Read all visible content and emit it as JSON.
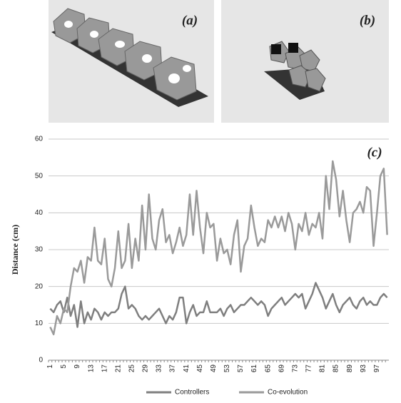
{
  "images": [
    {
      "label": "(a)"
    },
    {
      "label": "(b)"
    }
  ],
  "chart_data": {
    "type": "line",
    "annotation": "(c)",
    "y_label": "Distance (cm)",
    "categories": [
      "1",
      null,
      null,
      null,
      "5",
      null,
      null,
      null,
      "9",
      null,
      null,
      null,
      "13",
      null,
      null,
      null,
      "17",
      null,
      null,
      null,
      "21",
      null,
      null,
      null,
      "25",
      null,
      null,
      null,
      "29",
      null,
      null,
      null,
      "33",
      null,
      null,
      null,
      "37",
      null,
      null,
      null,
      "41",
      null,
      null,
      null,
      "45",
      null,
      null,
      null,
      "49",
      null,
      null,
      null,
      "53",
      null,
      null,
      null,
      "57",
      null,
      null,
      null,
      "61",
      null,
      null,
      null,
      "65",
      null,
      null,
      null,
      "69",
      null,
      null,
      null,
      "73",
      null,
      null,
      null,
      "77",
      null,
      null,
      null,
      "81",
      null,
      null,
      null,
      "85",
      null,
      null,
      null,
      "89",
      null,
      null,
      null,
      "93",
      null,
      null,
      null,
      "97",
      null,
      null,
      null
    ],
    "series": [
      {
        "name": "Controllers",
        "color": "#7f7f7f",
        "values": [
          14,
          13,
          15,
          16,
          13,
          17,
          12,
          15,
          9,
          16,
          10,
          13,
          11,
          14,
          13,
          11,
          13,
          12,
          13,
          13,
          14,
          18,
          20,
          14,
          15,
          14,
          12,
          11,
          12,
          11,
          12,
          13,
          14,
          12,
          10,
          12,
          11,
          13,
          17,
          17,
          10,
          13,
          15,
          12,
          13,
          13,
          16,
          13,
          13,
          13,
          14,
          12,
          14,
          15,
          13,
          14,
          15,
          15,
          16,
          17,
          16,
          15,
          16,
          15,
          12,
          14,
          15,
          16,
          17,
          15,
          16,
          17,
          18,
          17,
          18,
          14,
          16,
          18,
          21,
          19,
          17,
          14,
          16,
          18,
          15,
          13,
          15,
          16,
          17,
          15,
          14,
          16,
          17,
          15,
          16,
          15,
          15,
          17,
          18,
          17
        ]
      },
      {
        "name": "Co-evolution",
        "color": "#9a9a9a",
        "values": [
          9,
          7,
          12,
          10,
          14,
          13,
          20,
          25,
          24,
          27,
          21,
          28,
          27,
          36,
          27,
          26,
          33,
          22,
          20,
          25,
          35,
          25,
          27,
          37,
          25,
          33,
          27,
          42,
          30,
          45,
          33,
          30,
          38,
          41,
          32,
          34,
          29,
          32,
          36,
          31,
          34,
          45,
          34,
          46,
          36,
          29,
          40,
          36,
          37,
          27,
          33,
          29,
          30,
          26,
          34,
          38,
          24,
          31,
          33,
          42,
          36,
          31,
          33,
          32,
          38,
          36,
          39,
          36,
          39,
          35,
          40,
          37,
          30,
          37,
          35,
          40,
          34,
          37,
          36,
          40,
          33,
          50,
          41,
          54,
          49,
          39,
          46,
          38,
          32,
          40,
          41,
          43,
          40,
          47,
          46,
          31,
          40,
          50,
          52,
          34
        ]
      }
    ],
    "ylim": [
      0,
      60
    ],
    "yticks": [
      0,
      10,
      20,
      30,
      40,
      50,
      60
    ],
    "grid": true,
    "legend": "bottom"
  }
}
